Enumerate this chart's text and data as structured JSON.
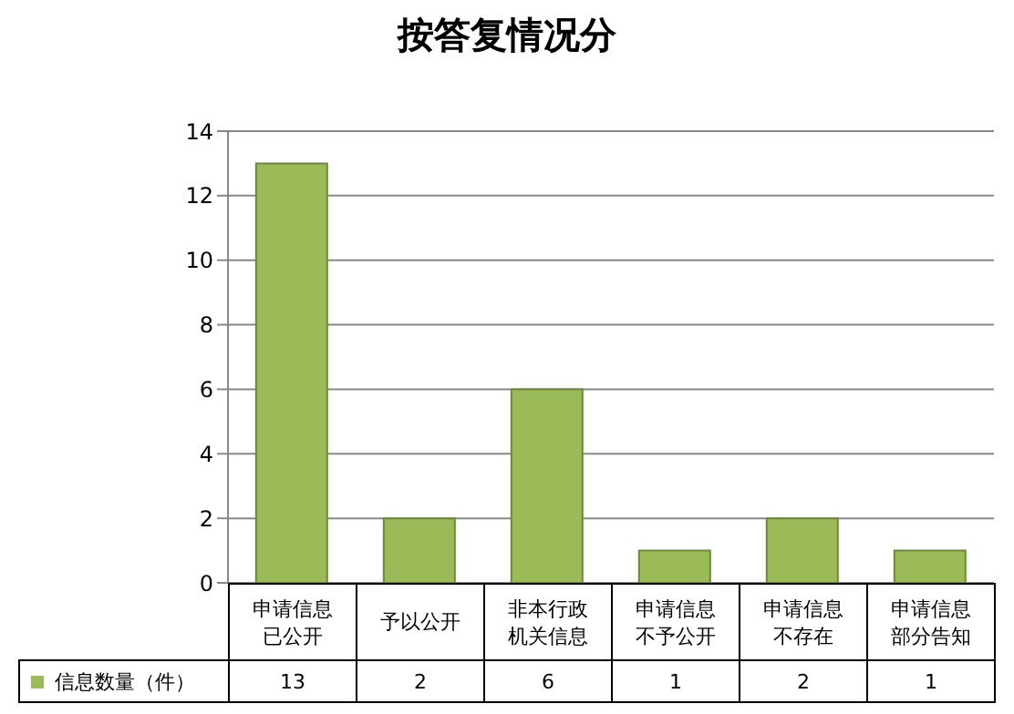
{
  "chart_data": {
    "type": "bar",
    "title": "按答复情况分",
    "categories": [
      "申请信息已公开",
      "予以公开",
      "非本行政机关信息",
      "申请信息不予公开",
      "申请信息不存在",
      "申请信息部分告知"
    ],
    "series": [
      {
        "name": "信息数量（件）",
        "color": "#9bbb59",
        "values": [
          13,
          2,
          6,
          1,
          2,
          1
        ]
      }
    ],
    "ylim": [
      0,
      14
    ],
    "yticks": [
      0,
      2,
      4,
      6,
      8,
      10,
      12,
      14
    ],
    "grid": "y",
    "legend": "bottom",
    "data_labels": true
  }
}
